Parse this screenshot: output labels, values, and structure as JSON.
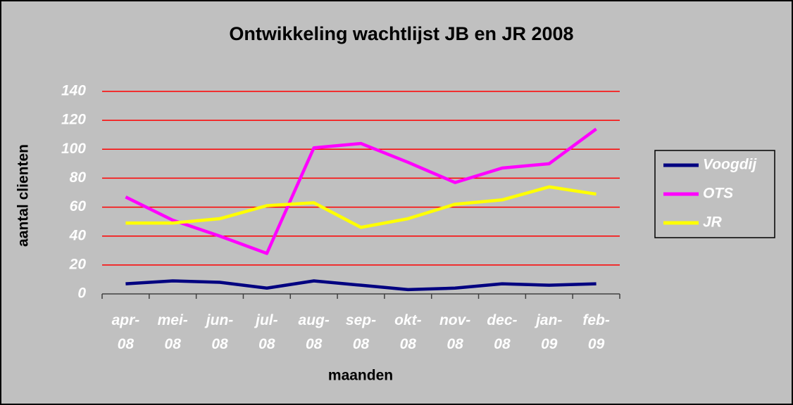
{
  "chart_data": {
    "type": "line",
    "title": "Ontwikkeling wachtlijst JB en JR 2008",
    "x_label": "maanden",
    "y_label": "aantal clienten",
    "categories": [
      "apr-08",
      "mei-08",
      "jun-08",
      "jul-08",
      "aug-08",
      "sep-08",
      "okt-08",
      "nov-08",
      "dec-08",
      "jan-09",
      "feb-09"
    ],
    "series": [
      {
        "name": "Voogdij",
        "color": "#000080",
        "values": [
          7,
          9,
          8,
          4,
          9,
          6,
          3,
          4,
          7,
          6,
          7
        ]
      },
      {
        "name": "OTS",
        "color": "#ff00ff",
        "values": [
          67,
          51,
          40,
          28,
          101,
          104,
          91,
          77,
          87,
          90,
          114
        ]
      },
      {
        "name": "JR",
        "color": "#ffff00",
        "values": [
          49,
          49,
          52,
          61,
          63,
          46,
          52,
          62,
          65,
          74,
          69
        ]
      }
    ],
    "ylim": [
      0,
      140
    ],
    "yticks": [
      0,
      20,
      40,
      60,
      80,
      100,
      120,
      140
    ],
    "grid": true,
    "grid_color": "#ff0000",
    "legend": "right"
  }
}
